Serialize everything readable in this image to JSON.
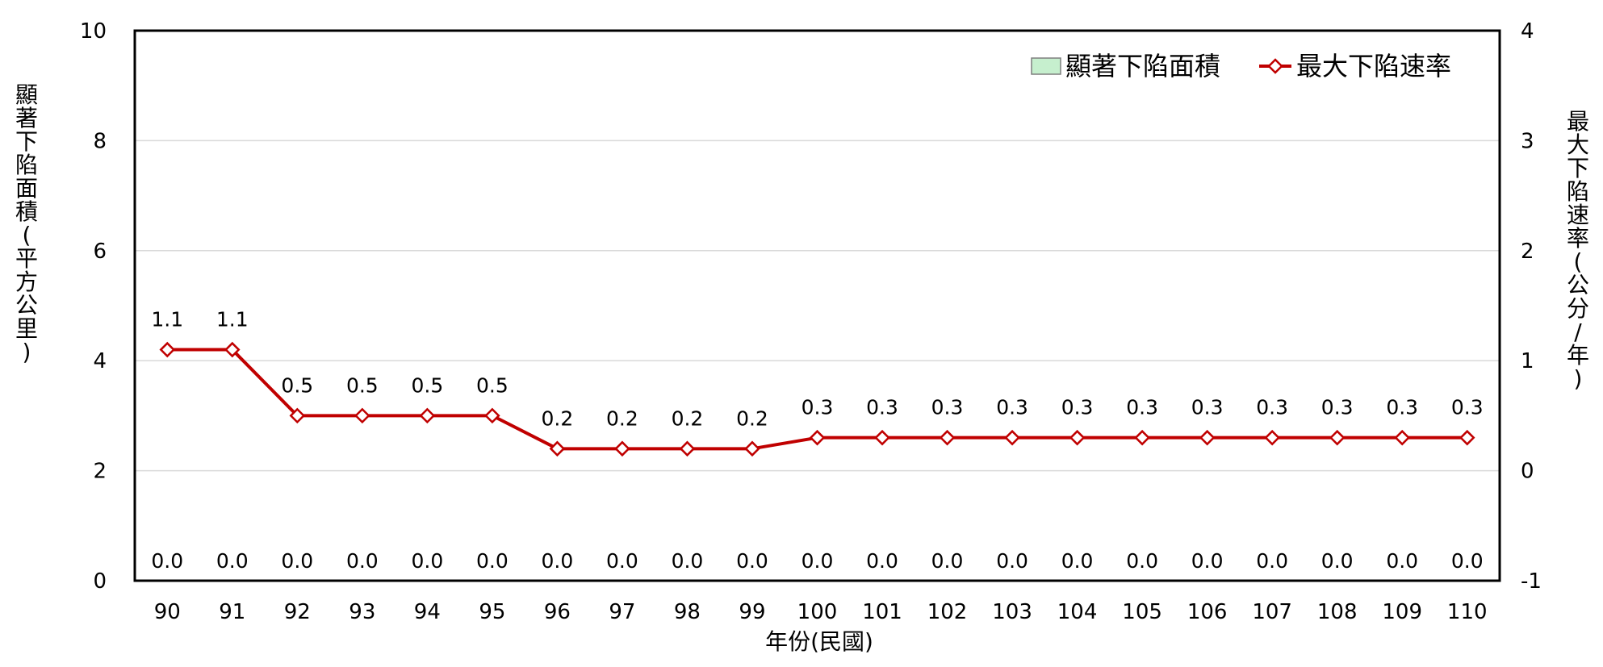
{
  "chart_data": {
    "type": "bar+line",
    "categories": [
      "90",
      "91",
      "92",
      "93",
      "94",
      "95",
      "96",
      "97",
      "98",
      "99",
      "100",
      "101",
      "102",
      "103",
      "104",
      "105",
      "106",
      "107",
      "108",
      "109",
      "110"
    ],
    "series": [
      {
        "name": "顯著下陷面積",
        "type": "bar",
        "axis": "left",
        "color": "#c6efce",
        "values": [
          0.0,
          0.0,
          0.0,
          0.0,
          0.0,
          0.0,
          0.0,
          0.0,
          0.0,
          0.0,
          0.0,
          0.0,
          0.0,
          0.0,
          0.0,
          0.0,
          0.0,
          0.0,
          0.0,
          0.0,
          0.0
        ],
        "labels": [
          "0.0",
          "0.0",
          "0.0",
          "0.0",
          "0.0",
          "0.0",
          "0.0",
          "0.0",
          "0.0",
          "0.0",
          "0.0",
          "0.0",
          "0.0",
          "0.0",
          "0.0",
          "0.0",
          "0.0",
          "0.0",
          "0.0",
          "0.0",
          "0.0"
        ]
      },
      {
        "name": "最大下陷速率",
        "type": "line",
        "axis": "right",
        "color": "#c00000",
        "marker": "diamond",
        "values": [
          1.1,
          1.1,
          0.5,
          0.5,
          0.5,
          0.5,
          0.2,
          0.2,
          0.2,
          0.2,
          0.3,
          0.3,
          0.3,
          0.3,
          0.3,
          0.3,
          0.3,
          0.3,
          0.3,
          0.3,
          0.3
        ],
        "labels": [
          "1.1",
          "1.1",
          "0.5",
          "0.5",
          "0.5",
          "0.5",
          "0.2",
          "0.2",
          "0.2",
          "0.2",
          "0.3",
          "0.3",
          "0.3",
          "0.3",
          "0.3",
          "0.3",
          "0.3",
          "0.3",
          "0.3",
          "0.3",
          "0.3"
        ]
      }
    ],
    "xlabel": "年份(民國)",
    "ylabel": "顯著下陷面積(平方公里)",
    "y2label": "最大下陷速率(公分/年)",
    "ylim": [
      0,
      10
    ],
    "yticks": [
      "0",
      "2",
      "4",
      "6",
      "8",
      "10"
    ],
    "y2lim": [
      -1,
      4
    ],
    "y2ticks": [
      "-1",
      "0",
      "1",
      "2",
      "3",
      "4"
    ],
    "grid": true,
    "legend_position": "top-right"
  }
}
